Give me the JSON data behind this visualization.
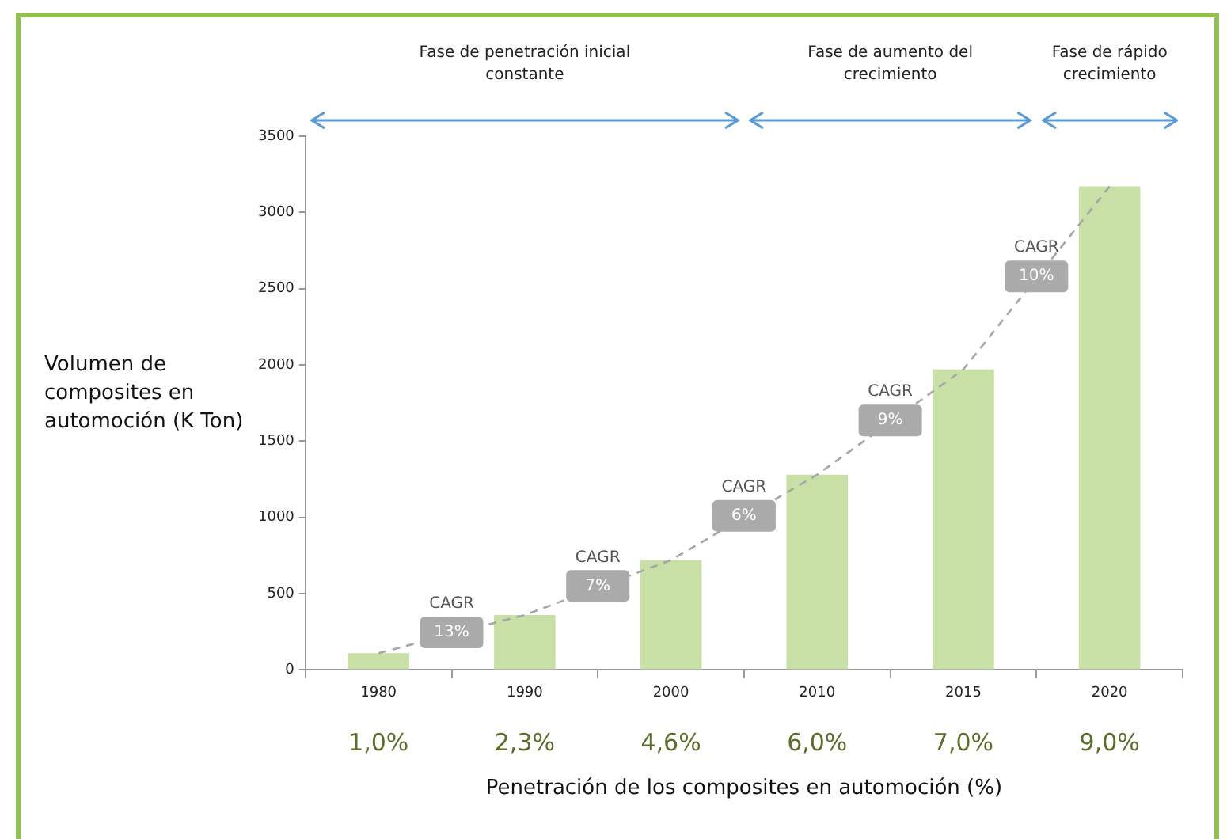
{
  "chart_data": {
    "type": "bar",
    "ylabel": "Volumen de composites en automoción (K Ton)",
    "xlabel": "Penetración de los composites en automoción (%)",
    "categories": [
      "1980",
      "1990",
      "2000",
      "2010",
      "2015",
      "2020"
    ],
    "series": [
      {
        "type": "bar",
        "color": "#c8e0a5",
        "values": [
          110,
          360,
          720,
          1280,
          1970,
          3170
        ]
      },
      {
        "type": "line",
        "color": "#a6a6a6",
        "values": [
          110,
          360,
          720,
          1280,
          1970,
          3170
        ],
        "line_style": "dashed",
        "marker": "none"
      }
    ],
    "ylim": [
      0,
      3500
    ],
    "yticks": [
      0,
      500,
      1000,
      1500,
      2000,
      2500,
      3000,
      3500
    ],
    "grid": false,
    "legend": false,
    "annotations": [
      "Fase de penetración inicial\nconstante",
      "Fase de aumento del\ncrecimiento",
      "Fase de rápido\ncrecimiento",
      "CAGR 13%",
      "CAGR 7%",
      "CAGR 6%",
      "CAGR 9%",
      "CAGR 10%",
      "1,0%",
      "2,3%",
      "4,6%",
      "6,0%",
      "7,0%",
      "9,0%"
    ]
  }
}
